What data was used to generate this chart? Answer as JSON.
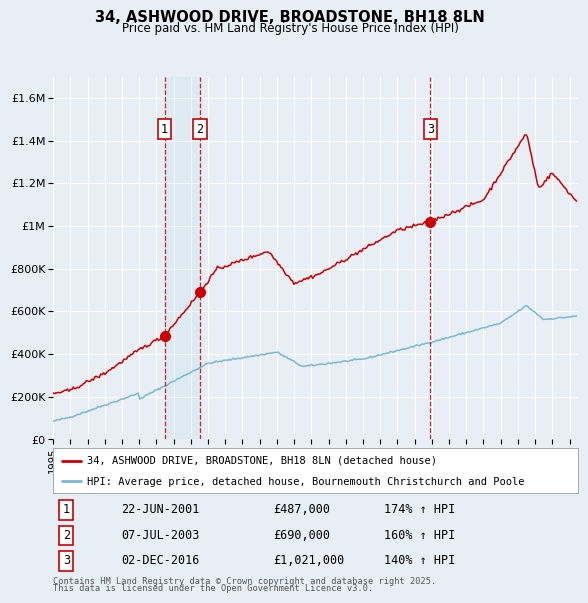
{
  "title1": "34, ASHWOOD DRIVE, BROADSTONE, BH18 8LN",
  "title2": "Price paid vs. HM Land Registry's House Price Index (HPI)",
  "background_color": "#e8eef5",
  "plot_bg_color": "#e8eef5",
  "grid_color": "#ffffff",
  "red_line_color": "#cc0000",
  "blue_line_color": "#7ab8d4",
  "sale_marker_color": "#cc0000",
  "transactions": [
    {
      "label": "1",
      "date_label": "22-JUN-2001",
      "price": 487000,
      "price_str": "£487,000",
      "hpi_pct": "174%",
      "sale_year": 2001.47
    },
    {
      "label": "2",
      "date_label": "07-JUL-2003",
      "price": 690000,
      "price_str": "£690,000",
      "hpi_pct": "160%",
      "sale_year": 2003.52
    },
    {
      "label": "3",
      "date_label": "02-DEC-2016",
      "price": 1021000,
      "price_str": "£1,021,000",
      "hpi_pct": "140%",
      "sale_year": 2016.92
    }
  ],
  "legend_line1": "34, ASHWOOD DRIVE, BROADSTONE, BH18 8LN (detached house)",
  "legend_line2": "HPI: Average price, detached house, Bournemouth Christchurch and Poole",
  "footnote1": "Contains HM Land Registry data © Crown copyright and database right 2025.",
  "footnote2": "This data is licensed under the Open Government Licence v3.0.",
  "x_start_year": 1995,
  "x_end_year": 2025,
  "ylim_max": 1700000,
  "yticks": [
    0,
    200000,
    400000,
    600000,
    800000,
    1000000,
    1200000,
    1400000,
    1600000
  ],
  "ytick_labels": [
    "£0",
    "£200K",
    "£400K",
    "£600K",
    "£800K",
    "£1M",
    "£1.2M",
    "£1.4M",
    "£1.6M"
  ]
}
